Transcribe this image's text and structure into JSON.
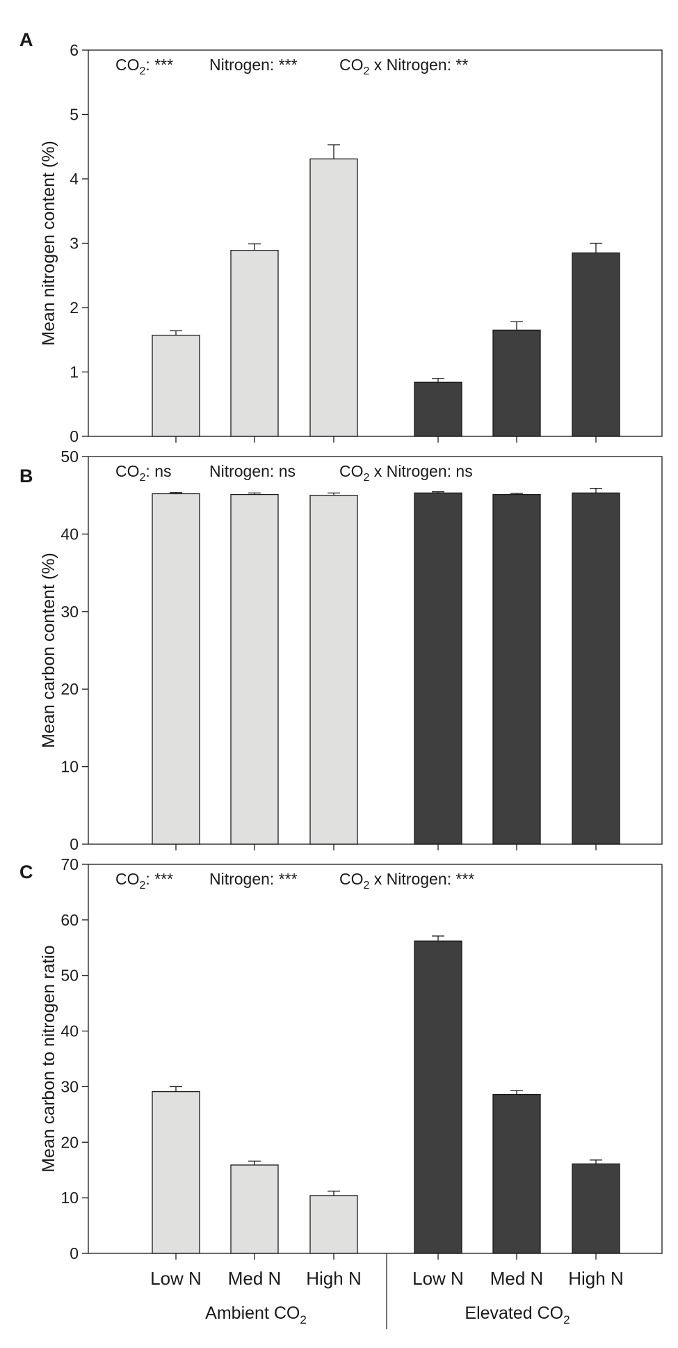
{
  "chart_data": [
    {
      "type": "bar",
      "panel": "A",
      "ylabel": "Mean nitrogen content (%)",
      "ylim": [
        0,
        6
      ],
      "yticks": [
        0,
        1,
        2,
        3,
        4,
        5,
        6
      ],
      "categories": [
        "Low N",
        "Med N",
        "High N",
        "Low N",
        "Med N",
        "High N"
      ],
      "groups": [
        "Ambient",
        "Ambient",
        "Ambient",
        "Elevated",
        "Elevated",
        "Elevated"
      ],
      "values": [
        1.57,
        2.89,
        4.31,
        0.84,
        1.65,
        2.85
      ],
      "errors": [
        0.07,
        0.1,
        0.22,
        0.06,
        0.13,
        0.15
      ],
      "annotation": [
        {
          "co2": "CO",
          "sub": "2",
          "sep": ": ",
          "stars": "***"
        },
        {
          "label": "Nitrogen: ",
          "stars": "***"
        },
        {
          "co2": "CO",
          "sub": "2",
          "rest": " x Nitrogen: ",
          "stars": "**"
        }
      ]
    },
    {
      "type": "bar",
      "panel": "B",
      "ylabel": "Mean carbon content (%)",
      "ylim": [
        0,
        50
      ],
      "yticks": [
        0,
        10,
        20,
        30,
        40,
        50
      ],
      "categories": [
        "Low N",
        "Med N",
        "High N",
        "Low N",
        "Med N",
        "High N"
      ],
      "groups": [
        "Ambient",
        "Ambient",
        "Ambient",
        "Elevated",
        "Elevated",
        "Elevated"
      ],
      "values": [
        45.2,
        45.1,
        45.0,
        45.3,
        45.1,
        45.3
      ],
      "errors": [
        0.15,
        0.2,
        0.3,
        0.15,
        0.15,
        0.6
      ],
      "annotation": [
        {
          "co2": "CO",
          "sub": "2",
          "sep": ": ",
          "stars": "ns"
        },
        {
          "label": "Nitrogen: ",
          "stars": "ns"
        },
        {
          "co2": "CO",
          "sub": "2",
          "rest": " x Nitrogen: ",
          "stars": "ns"
        }
      ]
    },
    {
      "type": "bar",
      "panel": "C",
      "ylabel": "Mean carbon to nitrogen ratio",
      "ylim": [
        0,
        70
      ],
      "yticks": [
        0,
        10,
        20,
        30,
        40,
        50,
        60,
        70
      ],
      "categories": [
        "Low N",
        "Med N",
        "High N",
        "Low N",
        "Med N",
        "High N"
      ],
      "groups": [
        "Ambient",
        "Ambient",
        "Ambient",
        "Elevated",
        "Elevated",
        "Elevated"
      ],
      "values": [
        29.1,
        15.9,
        10.4,
        56.2,
        28.6,
        16.1
      ],
      "errors": [
        0.9,
        0.7,
        0.8,
        0.9,
        0.7,
        0.7
      ],
      "annotation": [
        {
          "co2": "CO",
          "sub": "2",
          "sep": ": ",
          "stars": "***"
        },
        {
          "label": "Nitrogen: ",
          "stars": "***"
        },
        {
          "co2": "CO",
          "sub": "2",
          "rest": " x Nitrogen: ",
          "stars": "***"
        }
      ]
    }
  ],
  "x_axis": {
    "categories": [
      "Low N",
      "Med N",
      "High N",
      "Low N",
      "Med N",
      "High N"
    ],
    "group_labels": [
      {
        "text": "Ambient CO",
        "sub": "2"
      },
      {
        "text": "Elevated CO",
        "sub": "2"
      }
    ]
  },
  "colors": {
    "ambient": "#e0e0de",
    "elevated": "#3f3f3f",
    "stroke": "#1a1a1a"
  }
}
